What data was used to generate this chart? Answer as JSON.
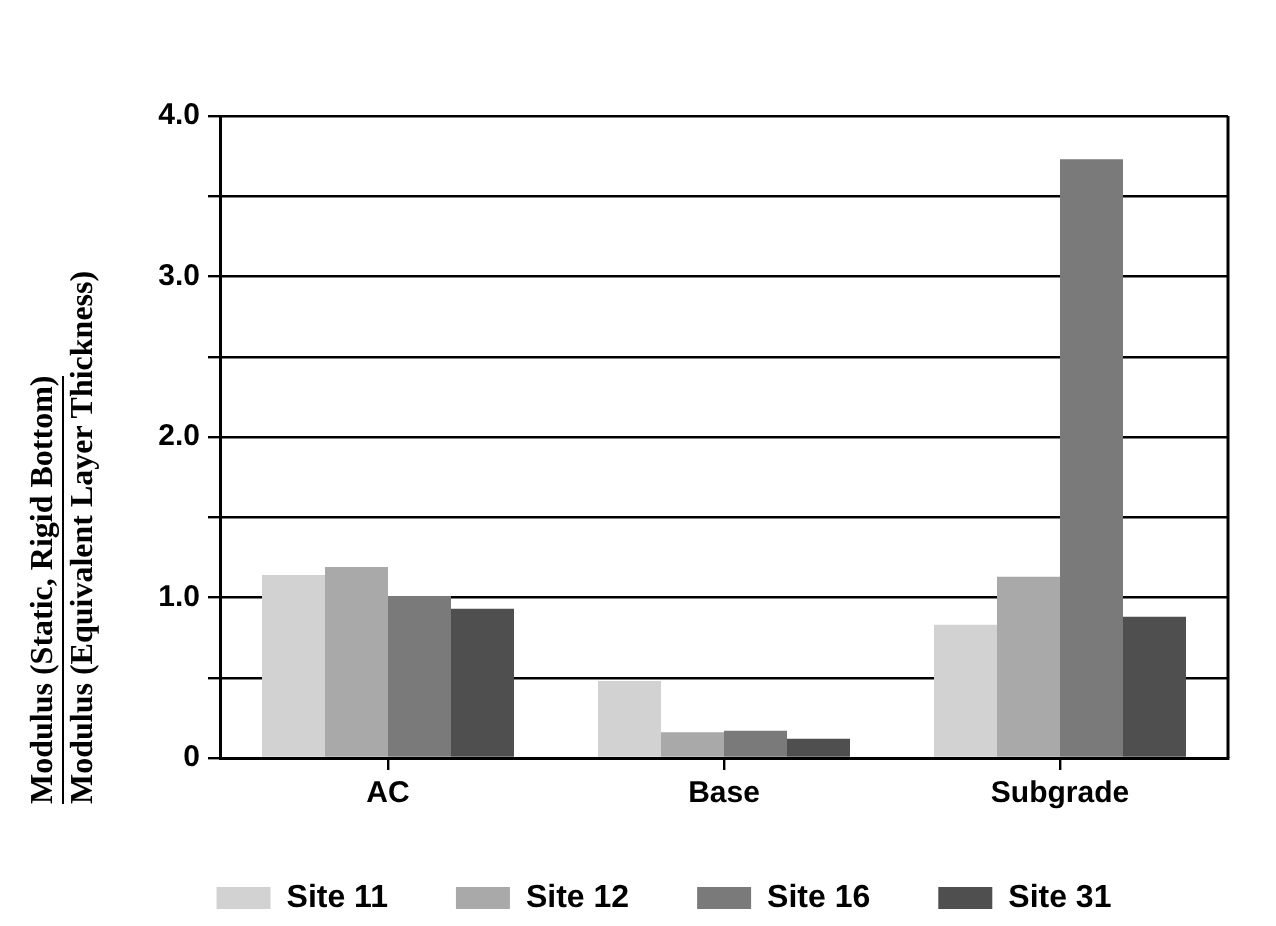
{
  "chart_data": {
    "type": "bar",
    "ylabel": "Modulus (Static, Rigid Bottom)\nModulus (Equivalent Layer Thickness)",
    "categories": [
      "AC",
      "Base",
      "Subgrade"
    ],
    "series": [
      {
        "name": "Site 11",
        "color": "#d2d2d2",
        "values": [
          1.14,
          0.48,
          0.83
        ]
      },
      {
        "name": "Site 12",
        "color": "#a9a9a9",
        "values": [
          1.19,
          0.16,
          1.13
        ]
      },
      {
        "name": "Site 16",
        "color": "#7a7a7a",
        "values": [
          1.01,
          0.17,
          3.73
        ]
      },
      {
        "name": "Site 31",
        "color": "#4f4f4f",
        "values": [
          0.93,
          0.12,
          0.88
        ]
      }
    ],
    "ylim": [
      0,
      4
    ],
    "yticks": [
      0,
      {
        "value": 0.5,
        "label": null
      },
      {
        "value": 1,
        "label": "1.0"
      },
      {
        "value": 1.5,
        "label": null
      },
      {
        "value": 2,
        "label": "2.0"
      },
      {
        "value": 2.5,
        "label": null
      },
      {
        "value": 3,
        "label": "3.0"
      },
      {
        "value": 3.5,
        "label": null
      },
      {
        "value": 4,
        "label": "4.0"
      }
    ],
    "grid": "y",
    "legend": "bottom"
  }
}
